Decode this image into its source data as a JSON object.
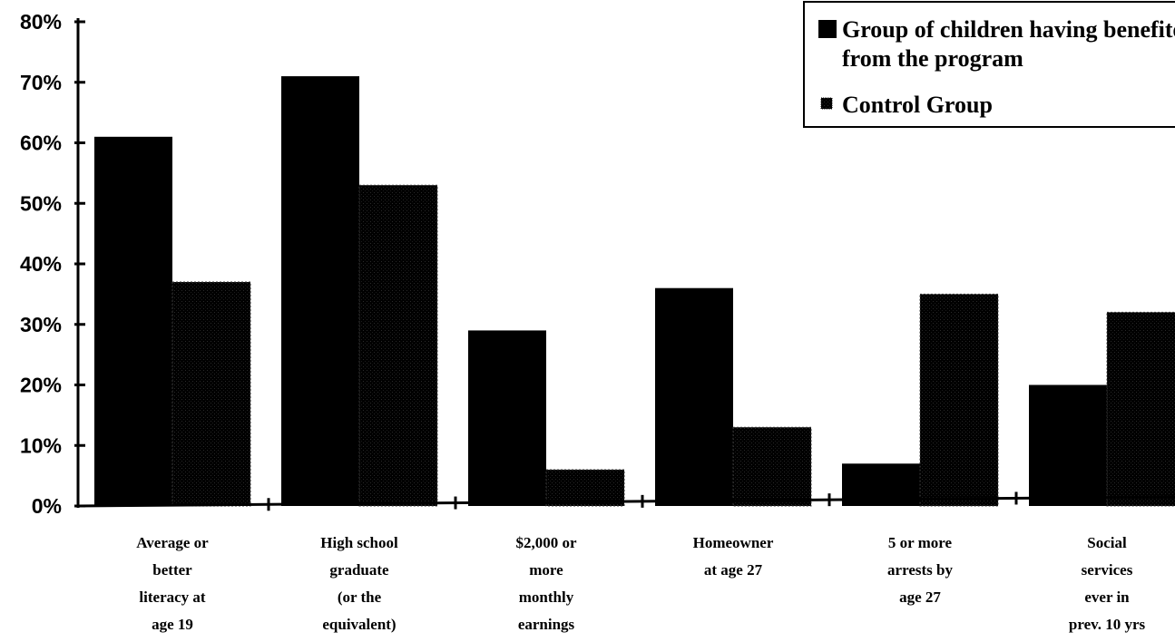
{
  "chart_data": {
    "type": "bar",
    "title": "",
    "xlabel": "",
    "ylabel": "",
    "ylim": [
      0,
      80
    ],
    "yticks": [
      "0%",
      "10%",
      "20%",
      "30%",
      "40%",
      "50%",
      "60%",
      "70%",
      "80%"
    ],
    "categories": [
      [
        "Average or",
        "better",
        "literacy at",
        "age 19"
      ],
      [
        "High school",
        "graduate",
        "(or the",
        "equivalent)"
      ],
      [
        "$2,000 or",
        "more",
        "monthly",
        "earnings"
      ],
      [
        "Homeowner",
        "at age 27"
      ],
      [
        "5 or more",
        "arrests by",
        "age 27"
      ],
      [
        "Social",
        "services",
        "ever in",
        "prev. 10 yrs"
      ]
    ],
    "series": [
      {
        "name": "Group of children having benefited from the program",
        "values": [
          61,
          71,
          29,
          36,
          7,
          20
        ],
        "color": "#000000"
      },
      {
        "name": "Control Group",
        "values": [
          37,
          53,
          6,
          13,
          35,
          32
        ],
        "color": "#0a0a0a"
      }
    ],
    "legend": {
      "placement": "top-right",
      "entries": [
        [
          "Group of children having benefited",
          "from the program"
        ],
        [
          "Control Group"
        ]
      ]
    }
  }
}
